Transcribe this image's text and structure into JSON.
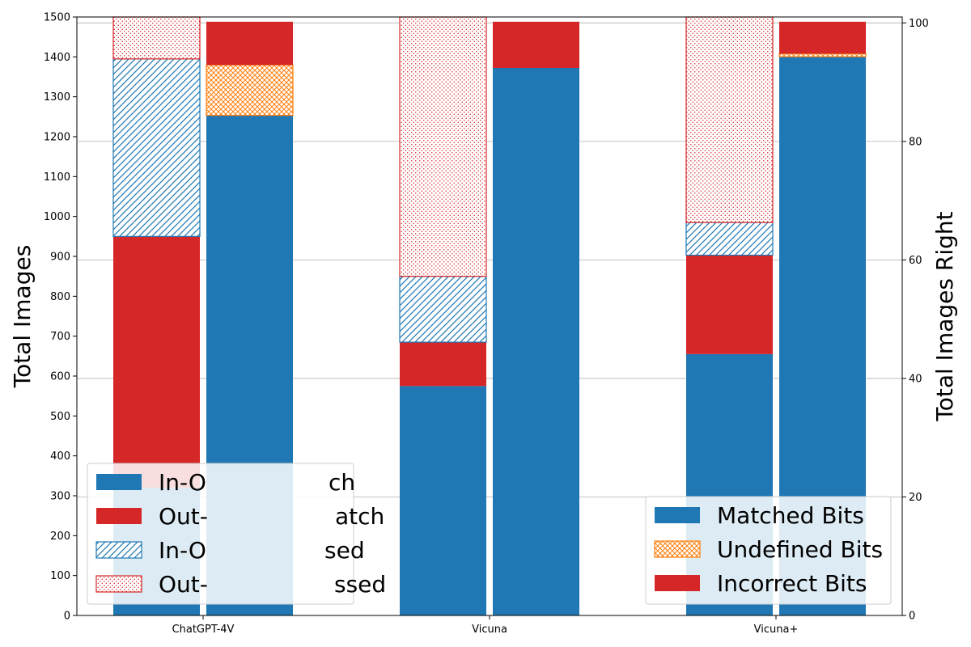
{
  "chart_data": {
    "type": "bar",
    "subtype": "grouped-stacked",
    "categories": [
      "ChatGPT-4V",
      "Vicuna",
      "Vicuna+"
    ],
    "ylabel": "Total Images",
    "ylabel_right": "Total Images Right",
    "ylim": [
      0,
      1500
    ],
    "ylim_right": [
      0,
      101
    ],
    "yticks": [
      0,
      100,
      200,
      300,
      400,
      500,
      600,
      700,
      800,
      900,
      1000,
      1100,
      1200,
      1300,
      1400,
      1500
    ],
    "yticks_right": [
      0,
      20,
      40,
      60,
      80,
      100
    ],
    "grid": "horizontal (right axis)",
    "left_bars": {
      "axis": "left",
      "series": [
        {
          "name": "In-O... Match",
          "values": [
            320,
            575,
            655
          ],
          "color": "#1f77b4",
          "hatch": "none"
        },
        {
          "name": "Out-... Match",
          "values": [
            630,
            110,
            248
          ],
          "color": "#d62728",
          "hatch": "none"
        },
        {
          "name": "In-O... Missed",
          "values": [
            445,
            165,
            82
          ],
          "color": "#1f77b4",
          "hatch": "diagonal"
        },
        {
          "name": "Out-... Missed",
          "values": [
            105,
            650,
            515
          ],
          "color": "#d62728",
          "hatch": "dots"
        }
      ]
    },
    "right_bars": {
      "axis": "right",
      "series": [
        {
          "name": "Matched Bits",
          "values": [
            84.4,
            92.4,
            94.3
          ],
          "color": "#1f77b4",
          "hatch": "none"
        },
        {
          "name": "Undefined Bits",
          "values": [
            8.5,
            0,
            0.5
          ],
          "color": "#ff7f0e",
          "hatch": "crosshatch"
        },
        {
          "name": "Incorrect Bits",
          "values": [
            7.3,
            7.8,
            5.4
          ],
          "color": "#d62728",
          "hatch": "none"
        }
      ]
    },
    "legend_left": {
      "placement": "lower-left",
      "entries": [
        "In-Order Match",
        "Out-of-Order Match",
        "In-Order Missed",
        "Out-of-Order Missed"
      ],
      "visible_text": [
        "In-O",
        "Out-",
        "In-O",
        "Out-"
      ],
      "visible_text_tail": [
        "ch",
        "atch",
        "sed",
        "ssed"
      ]
    },
    "legend_right": {
      "placement": "lower-right",
      "entries": [
        "Matched Bits",
        "Undefined Bits",
        "Incorrect Bits"
      ]
    }
  }
}
